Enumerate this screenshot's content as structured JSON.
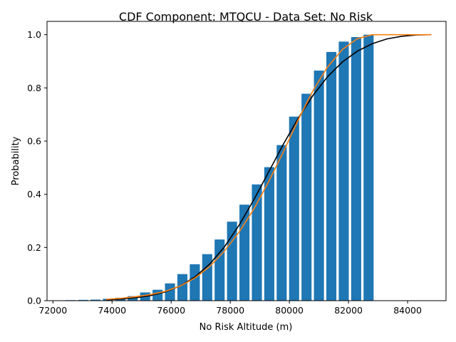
{
  "chart_data": {
    "type": "bar",
    "title": "CDF Component: MTQCU - Data Set: No Risk",
    "xlabel": "No Risk Altitude (m)",
    "ylabel": "Probability",
    "xlim": [
      71800,
      85300
    ],
    "ylim": [
      0,
      1.05
    ],
    "xticks": [
      72000,
      74000,
      76000,
      78000,
      80000,
      82000,
      84000
    ],
    "xtick_labels": [
      "72000",
      "74000",
      "76000",
      "78000",
      "80000",
      "82000",
      "84000"
    ],
    "yticks": [
      0.0,
      0.2,
      0.4,
      0.6,
      0.8,
      1.0
    ],
    "ytick_labels": [
      "0.0",
      "0.2",
      "0.4",
      "0.6",
      "0.8",
      "1.0"
    ],
    "grid": false,
    "bar_width": 340,
    "bar_color": "#1f77b4",
    "bars": {
      "x": [
        72600,
        73020,
        73440,
        73860,
        74280,
        74700,
        75120,
        75540,
        75960,
        76380,
        76800,
        77220,
        77640,
        78060,
        78480,
        78900,
        79320,
        79740,
        80160,
        80580,
        81000,
        81420,
        81840,
        82260,
        82680
      ],
      "values": [
        0.002,
        0.003,
        0.004,
        0.007,
        0.011,
        0.017,
        0.031,
        0.041,
        0.065,
        0.1,
        0.137,
        0.175,
        0.23,
        0.297,
        0.361,
        0.437,
        0.502,
        0.585,
        0.692,
        0.778,
        0.865,
        0.935,
        0.974,
        0.991,
        1.0
      ]
    },
    "series": [
      {
        "type": "line",
        "color": "#000000",
        "x": [
          73800,
          74300,
          74800,
          75300,
          75800,
          76300,
          76800,
          77300,
          77800,
          78300,
          78800,
          79300,
          79800,
          80300,
          80800,
          81300,
          81800,
          82300,
          82800,
          83300,
          83800,
          84300,
          84800
        ],
        "values": [
          0.003,
          0.006,
          0.011,
          0.019,
          0.033,
          0.055,
          0.089,
          0.137,
          0.202,
          0.284,
          0.38,
          0.484,
          0.589,
          0.686,
          0.772,
          0.843,
          0.898,
          0.938,
          0.966,
          0.984,
          0.994,
          0.999,
          1.0
        ]
      },
      {
        "type": "line",
        "color": "#ff7f0e",
        "x": [
          73800,
          74300,
          74800,
          75300,
          75800,
          76300,
          76800,
          77300,
          77800,
          78300,
          78800,
          79300,
          79800,
          80300,
          80800,
          81300,
          81800,
          82300,
          82800,
          83300,
          83800,
          84300,
          84800
        ],
        "values": [
          0.005,
          0.009,
          0.015,
          0.023,
          0.035,
          0.055,
          0.085,
          0.128,
          0.186,
          0.258,
          0.345,
          0.448,
          0.56,
          0.68,
          0.79,
          0.88,
          0.945,
          0.985,
          1.0,
          1.0,
          1.0,
          1.0,
          1.0
        ]
      }
    ]
  }
}
